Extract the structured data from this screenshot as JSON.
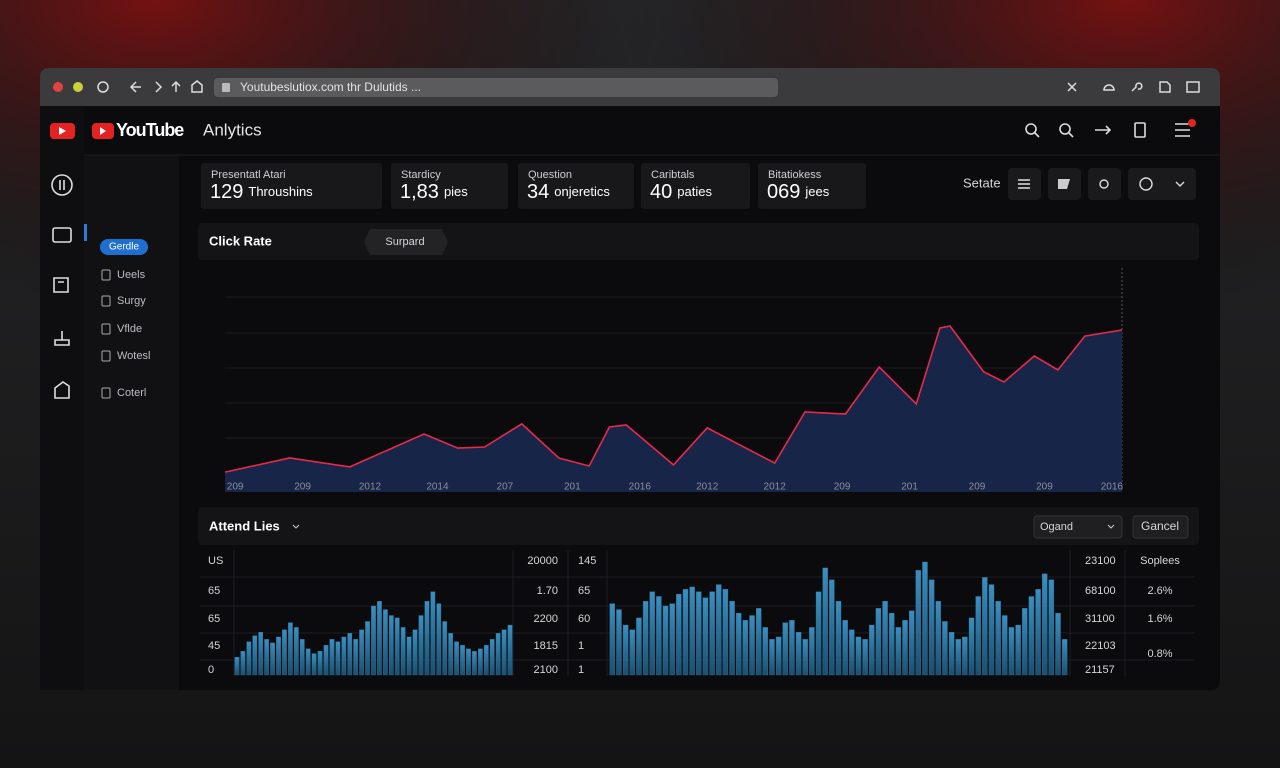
{
  "browser": {
    "url": "Youtubeslutiox.com thr Dulutids ..."
  },
  "header": {
    "brand": "YouTube",
    "title": "Anlytics"
  },
  "sidebar": {
    "items": [
      "Gerdle",
      "Ueels",
      "Surgy",
      "Vflde",
      "Wotesl",
      "Coterl"
    ]
  },
  "stats": [
    {
      "label": "Presentatl Atari",
      "value": "129",
      "unit": "Throushins"
    },
    {
      "label": "Stardicy",
      "value": "1,83",
      "unit": "pies"
    },
    {
      "label": "Question",
      "value": "34",
      "unit": "onjeretics"
    },
    {
      "label": "Caribtals",
      "value": "40",
      "unit": "paties"
    },
    {
      "label": "Bitatiokess",
      "value": "069",
      "unit": "jees"
    }
  ],
  "toolbar": {
    "label": "Setate"
  },
  "click_rate": {
    "title": "Click Rate",
    "button": "Surpard"
  },
  "attend": {
    "title": "Attend Lies",
    "dropdown": "Ogand",
    "button": "Gancel"
  },
  "chart_data": [
    {
      "type": "line",
      "color": "#e8294c",
      "fill": "#17284f",
      "x": [
        -0.15,
        0.81,
        1.7,
        2.8,
        3.3,
        3.7,
        4.25,
        4.8,
        5.25,
        5.55,
        5.8,
        6.5,
        7.0,
        8.0,
        8.45,
        9.05,
        9.55,
        10.1,
        10.45,
        10.6,
        11.1,
        11.4,
        11.85,
        12.2,
        12.6,
        13.15
      ],
      "values": [
        8.9,
        15.2,
        11.2,
        25.9,
        19.6,
        20.1,
        30.4,
        15.2,
        11.6,
        29,
        29.9,
        12.1,
        28.6,
        12.9,
        35.7,
        34.8,
        55.8,
        39.3,
        73.2,
        74.1,
        53.6,
        49.1,
        60.7,
        54.5,
        69.6,
        72.3
      ],
      "xlim": [
        -0.15,
        13.15
      ],
      "ylim": [
        0,
        100
      ],
      "xticks": [
        {
          "value": 0,
          "label": "209"
        },
        {
          "value": 1,
          "label": "209"
        },
        {
          "value": 2,
          "label": "2012"
        },
        {
          "value": 3,
          "label": "2014"
        },
        {
          "value": 4,
          "label": "207"
        },
        {
          "value": 5,
          "label": "201"
        },
        {
          "value": 6,
          "label": "2016"
        },
        {
          "value": 7,
          "label": "2012"
        },
        {
          "value": 8,
          "label": "2012"
        },
        {
          "value": 9,
          "label": "209"
        },
        {
          "value": 10,
          "label": "201"
        },
        {
          "value": 11,
          "label": "209"
        },
        {
          "value": 12,
          "label": "209"
        },
        {
          "value": 13,
          "label": "2016"
        }
      ]
    },
    {
      "type": "bar",
      "color": "#2d7aa6",
      "ylim": [
        0,
        100
      ],
      "values": [
        15,
        20,
        28,
        33,
        36,
        30,
        27,
        32,
        38,
        44,
        40,
        30,
        22,
        18,
        20,
        25,
        30,
        28,
        32,
        35,
        30,
        38,
        45,
        58,
        62,
        55,
        50,
        48,
        40,
        32,
        38,
        50,
        62,
        70,
        60,
        45,
        35,
        28,
        25,
        22,
        20,
        22,
        25,
        30,
        35,
        38,
        42
      ],
      "labels_left": [
        "US",
        "65",
        "65",
        "45",
        "0"
      ],
      "labels_right": [
        "20000",
        "1.70",
        "2200",
        "1815",
        "2100"
      ]
    },
    {
      "type": "bar",
      "color": "#2d7aa6",
      "ylim": [
        0,
        100
      ],
      "values": [
        60,
        55,
        42,
        38,
        48,
        62,
        70,
        66,
        58,
        60,
        68,
        72,
        74,
        70,
        65,
        70,
        76,
        72,
        62,
        52,
        46,
        50,
        56,
        40,
        30,
        32,
        44,
        46,
        36,
        30,
        40,
        70,
        90,
        80,
        62,
        46,
        38,
        32,
        30,
        42,
        56,
        62,
        52,
        40,
        46,
        54,
        88,
        95,
        80,
        62,
        45,
        36,
        30,
        32,
        48,
        66,
        82,
        76,
        62,
        50,
        40,
        42,
        56,
        66,
        72,
        85,
        80,
        52,
        30
      ],
      "labels_left": [
        "145",
        "65",
        "60",
        "1",
        "1"
      ],
      "labels_right": [
        "23100",
        "68100",
        "31100",
        "22103",
        "21157"
      ],
      "side_title": "Soplees",
      "side_labels": [
        "2.6%",
        "1.6%",
        "0.8%"
      ]
    }
  ]
}
